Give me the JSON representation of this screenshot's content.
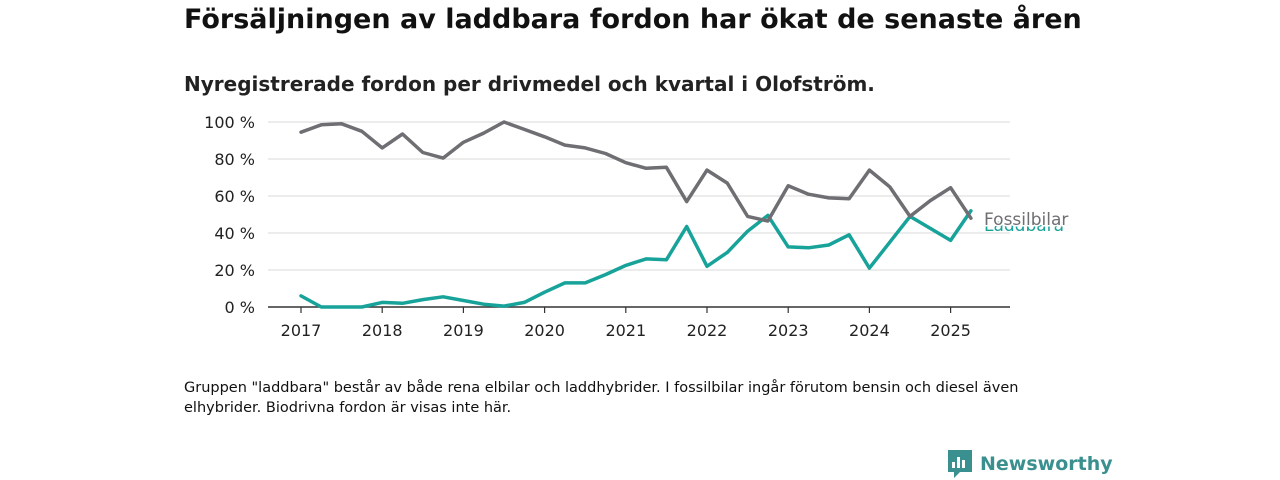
{
  "header": {
    "title": "Försäljningen av laddbara fordon har ökat de senaste åren",
    "subtitle": "Nyregistrerade fordon per drivmedel och kvartal i Olofström."
  },
  "footer": {
    "note": "Gruppen \"laddbara\" består av både rena elbilar och laddhybrider. I fossilbilar ingår förutom bensin och diesel även elhybrider. Biodrivna fordon är visas inte här.",
    "brand": "Newsworthy",
    "brand_color": "#3a8f8f",
    "logo_icon": "newsworthy-logo-icon"
  },
  "chart_data": {
    "type": "line",
    "title": "",
    "xlabel": "",
    "ylabel": "",
    "x_ticks": [
      "2017",
      "2018",
      "2019",
      "2020",
      "2021",
      "2022",
      "2023",
      "2024",
      "2025"
    ],
    "y_ticks": [
      "0 %",
      "20 %",
      "40 %",
      "60 %",
      "80 %",
      "100 %"
    ],
    "ylim": [
      0,
      100
    ],
    "grid": true,
    "x": [
      "2017 Q1",
      "2017 Q2",
      "2017 Q3",
      "2017 Q4",
      "2018 Q1",
      "2018 Q2",
      "2018 Q3",
      "2018 Q4",
      "2019 Q1",
      "2019 Q2",
      "2019 Q3",
      "2019 Q4",
      "2020 Q1",
      "2020 Q2",
      "2020 Q3",
      "2020 Q4",
      "2021 Q1",
      "2021 Q2",
      "2021 Q3",
      "2021 Q4",
      "2022 Q1",
      "2022 Q2",
      "2022 Q3",
      "2022 Q4",
      "2023 Q1",
      "2023 Q2",
      "2023 Q3",
      "2023 Q4",
      "2024 Q1",
      "2024 Q2",
      "2024 Q3",
      "2024 Q4",
      "2025 Q1",
      "2025 Q2"
    ],
    "series": [
      {
        "name": "Fossilbilar",
        "color": "#6e6e73",
        "values": [
          94.5,
          98.5,
          99,
          95,
          86,
          93.5,
          83.5,
          80.5,
          89,
          94,
          100,
          96,
          92,
          87.5,
          86,
          83,
          78,
          75,
          75.5,
          57,
          74,
          67,
          49,
          46.5,
          65.5,
          61,
          59,
          58.5,
          74,
          65,
          49,
          57.5,
          64.5,
          48
        ]
      },
      {
        "name": "Laddbara",
        "color": "#17a39a",
        "values": [
          6,
          0,
          0,
          0,
          2.5,
          2,
          4,
          5.5,
          3.5,
          1.5,
          0.5,
          2.5,
          8,
          13,
          13,
          17.5,
          22.5,
          26,
          25.5,
          43.5,
          22,
          29.5,
          41,
          49.5,
          32.5,
          32,
          33.5,
          39,
          21,
          35,
          49,
          42.5,
          36,
          52
        ]
      }
    ]
  }
}
